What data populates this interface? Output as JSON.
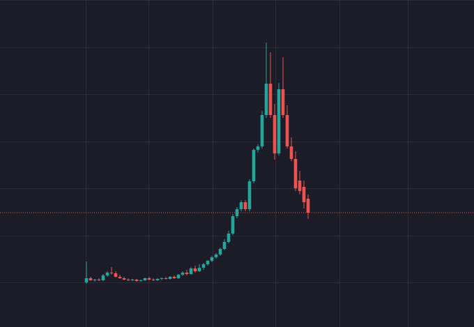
{
  "chart_data": {
    "type": "candlestick",
    "open": [
      64,
      70,
      67,
      68,
      67,
      74,
      78,
      77,
      72,
      70,
      68,
      67,
      68,
      66,
      67,
      70,
      68,
      67,
      69,
      70,
      69,
      72,
      70,
      75,
      78,
      76,
      84,
      80,
      85,
      90,
      95,
      100,
      104,
      112,
      122,
      134,
      159,
      169,
      179,
      169,
      209,
      254,
      259,
      304,
      349,
      304,
      249,
      341,
      304,
      259,
      241,
      210,
      201,
      184
    ],
    "high": [
      94,
      72,
      69,
      70,
      76,
      80,
      86,
      80,
      75,
      72,
      70,
      69,
      69,
      68,
      71,
      72,
      70,
      70,
      71,
      72,
      73,
      74,
      76,
      80,
      82,
      86,
      88,
      90,
      92,
      96,
      102,
      106,
      114,
      126,
      138,
      162,
      172,
      182,
      182,
      212,
      256,
      262,
      310,
      408,
      394,
      320,
      350,
      387,
      318,
      272,
      252,
      224,
      210,
      190
    ],
    "low": [
      62,
      66,
      65,
      66,
      66,
      72,
      75,
      71,
      69,
      67,
      66,
      66,
      65,
      65,
      66,
      67,
      66,
      66,
      67,
      68,
      68,
      69,
      69,
      73,
      74,
      75,
      78,
      79,
      82,
      88,
      93,
      98,
      102,
      110,
      120,
      132,
      156,
      166,
      166,
      166,
      206,
      250,
      256,
      300,
      300,
      240,
      246,
      300,
      256,
      238,
      195,
      190,
      170,
      155
    ],
    "close": [
      70,
      67,
      68,
      67,
      74,
      78,
      77,
      72,
      70,
      68,
      67,
      68,
      66,
      67,
      70,
      68,
      67,
      69,
      70,
      69,
      72,
      70,
      75,
      78,
      76,
      84,
      80,
      85,
      90,
      95,
      100,
      104,
      112,
      122,
      134,
      159,
      169,
      179,
      169,
      209,
      254,
      259,
      304,
      349,
      304,
      249,
      341,
      304,
      259,
      241,
      199,
      195,
      179,
      164
    ],
    "up_color": "#26a69a",
    "down_color": "#ef5350",
    "ylim": [
      0,
      469
    ],
    "price_line": true
  }
}
